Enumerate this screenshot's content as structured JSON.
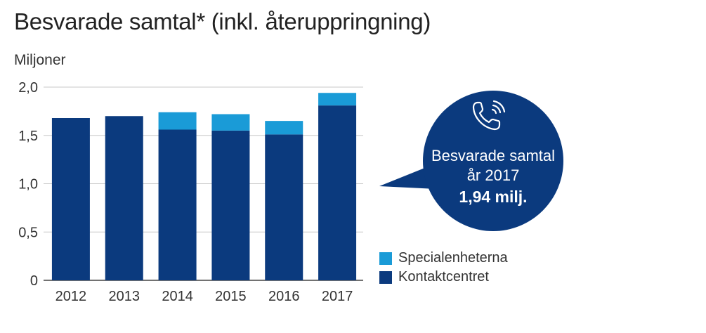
{
  "title": "Besvarade samtal* (inkl. återuppringning)",
  "unit_label": "Miljoner",
  "colors": {
    "special": "#1a9bd7",
    "kontakt": "#0b3a7e",
    "grid": "#c8c8c8",
    "axis": "#444444"
  },
  "legend": [
    {
      "label": "Specialenheterna",
      "color": "#1a9bd7"
    },
    {
      "label": "Kontaktcentret",
      "color": "#0b3a7e"
    }
  ],
  "callout": {
    "icon": "phone-icon",
    "line1": "Besvarade samtal",
    "line2": "år 2017",
    "value": "1,94 milj."
  },
  "chart_data": {
    "type": "bar",
    "stacked": true,
    "title": "Besvarade samtal* (inkl. återuppringning)",
    "ylabel": "Miljoner",
    "xlabel": "",
    "categories": [
      "2012",
      "2013",
      "2014",
      "2015",
      "2016",
      "2017"
    ],
    "series": [
      {
        "name": "Kontaktcentret",
        "values": [
          1.68,
          1.7,
          1.56,
          1.55,
          1.51,
          1.81
        ]
      },
      {
        "name": "Specialenheterna",
        "values": [
          0.0,
          0.0,
          0.18,
          0.17,
          0.14,
          0.13
        ]
      }
    ],
    "ylim": [
      0,
      2.0
    ],
    "yticks": [
      0,
      0.5,
      1.0,
      1.5,
      2.0
    ],
    "ytick_labels": [
      "0",
      "0,5",
      "1,0",
      "1,5",
      "2,0"
    ],
    "grid": true,
    "legend_position": "bottom-right"
  }
}
